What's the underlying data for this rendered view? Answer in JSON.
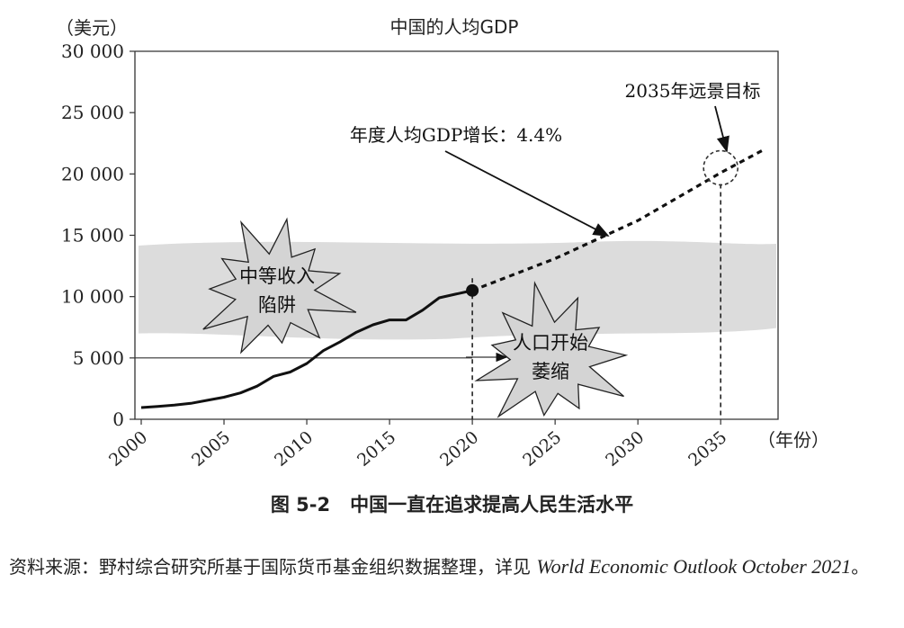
{
  "chart_data": {
    "type": "line",
    "title": "中国的人均GDP",
    "ylabel": "（美元）",
    "xlabel": "（年份）",
    "ylim": [
      0,
      30000
    ],
    "xlim": [
      2000,
      2038
    ],
    "y_ticks": [
      0,
      5000,
      10000,
      15000,
      20000,
      25000,
      30000
    ],
    "y_tick_labels": [
      "0",
      "5 000",
      "10 000",
      "15 000",
      "20 000",
      "25 000",
      "30 000"
    ],
    "x_ticks": [
      2000,
      2005,
      2010,
      2015,
      2020,
      2025,
      2030,
      2035
    ],
    "x_tick_labels": [
      "2000",
      "2005",
      "2010",
      "2015",
      "2020",
      "2025",
      "2030",
      "2035"
    ],
    "grid": false,
    "series": [
      {
        "style": "solid",
        "x": [
          2000,
          2001,
          2002,
          2003,
          2004,
          2005,
          2006,
          2007,
          2008,
          2009,
          2010,
          2011,
          2012,
          2013,
          2014,
          2015,
          2016,
          2017,
          2018,
          2019,
          2020
        ],
        "y": [
          950,
          1050,
          1150,
          1300,
          1550,
          1800,
          2150,
          2700,
          3500,
          3850,
          4550,
          5600,
          6300,
          7100,
          7700,
          8100,
          8100,
          8900,
          9900,
          10200,
          10500
        ]
      },
      {
        "style": "dashed",
        "x": [
          2020,
          2025,
          2030,
          2035,
          2037.5
        ],
        "y": [
          10500,
          13100,
          16200,
          20100,
          21900
        ]
      }
    ],
    "highlight_point": {
      "x": 2020,
      "y": 10500
    },
    "middle_income_band": {
      "y_from": 7000,
      "y_to": 14300
    },
    "reference_line": {
      "y": 5000,
      "x_to": 2020
    },
    "vertical_markers": [
      2020,
      2035
    ],
    "target_circle": {
      "x": 2035,
      "y": 20500
    },
    "annotations": {
      "target": "2035年远景目标",
      "growth": "年度人均GDP增长：4.4%",
      "trap_line1": "中等收入",
      "trap_line2": "陷阱",
      "pop_line1": "人口开始",
      "pop_line2": "萎缩"
    },
    "colors": {
      "band": "#dcdcdc",
      "burst": "#d4d4d4",
      "line": "#111111",
      "axis": "#333333"
    }
  },
  "caption": {
    "number": "图 5-2",
    "text": "中国一直在追求提高人民生活水平"
  },
  "source": {
    "prefix": "资料来源：野村综合研究所基于国际货币基金组织数据整理，详见",
    "italic": "World Economic Outlook October 2021",
    "suffix": "。"
  }
}
